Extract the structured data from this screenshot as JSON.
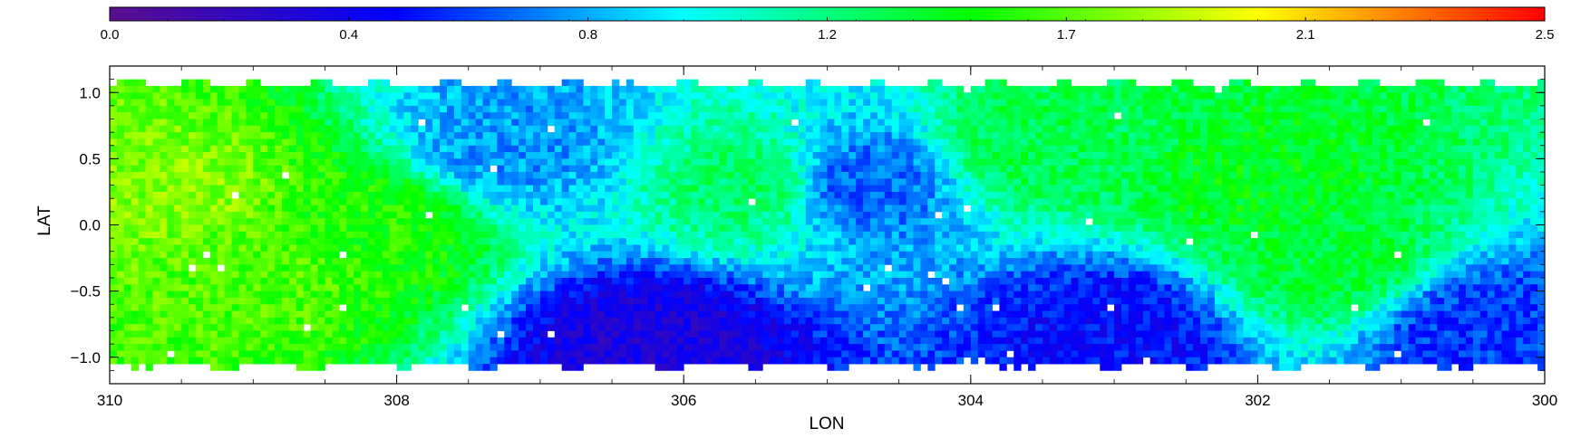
{
  "chart_data": {
    "type": "heatmap",
    "title": "",
    "xlabel": "LON",
    "ylabel": "LAT",
    "xlim": [
      310,
      300
    ],
    "ylim": [
      -1.2,
      1.2
    ],
    "x_ticks": [
      310,
      308,
      306,
      304,
      302,
      300
    ],
    "x_tick_labels": [
      "310",
      "308",
      "306",
      "304",
      "302",
      "300"
    ],
    "y_ticks": [
      1.0,
      0.5,
      0.0,
      -0.5,
      -1.0
    ],
    "y_tick_labels": [
      "1.0",
      "0.5",
      "0.0",
      "−0.5",
      "−1.0"
    ],
    "grid": false,
    "colorbar": {
      "placement": "top",
      "range": [
        0.0,
        2.5
      ],
      "tick_labels": [
        "0.0",
        "0.4",
        "0.8",
        "1.2",
        "1.7",
        "2.1",
        "2.5"
      ],
      "colormap": [
        "#5a0f8c",
        "#0000ff",
        "#00ffff",
        "#00ff00",
        "#ffff00",
        "#ff0000"
      ]
    },
    "missing_color": "#ffffff",
    "grid_resolution_deg": 0.05,
    "value_field_description_points": [
      {
        "lon": 309.5,
        "lat": 0.2,
        "value": 1.75
      },
      {
        "lon": 309.0,
        "lat": -0.3,
        "value": 1.65
      },
      {
        "lon": 308.2,
        "lat": 0.0,
        "value": 1.55
      },
      {
        "lon": 307.2,
        "lat": 0.6,
        "value": 0.8
      },
      {
        "lon": 306.2,
        "lat": -0.9,
        "value": 0.35
      },
      {
        "lon": 305.5,
        "lat": 0.3,
        "value": 1.3
      },
      {
        "lon": 304.8,
        "lat": 0.3,
        "value": 0.7
      },
      {
        "lon": 303.5,
        "lat": 0.6,
        "value": 1.35
      },
      {
        "lon": 303.0,
        "lat": -0.8,
        "value": 0.5
      },
      {
        "lon": 302.0,
        "lat": 0.3,
        "value": 1.45
      },
      {
        "lon": 301.5,
        "lat": -0.3,
        "value": 1.4
      },
      {
        "lon": 300.5,
        "lat": -0.8,
        "value": 0.6
      }
    ]
  }
}
